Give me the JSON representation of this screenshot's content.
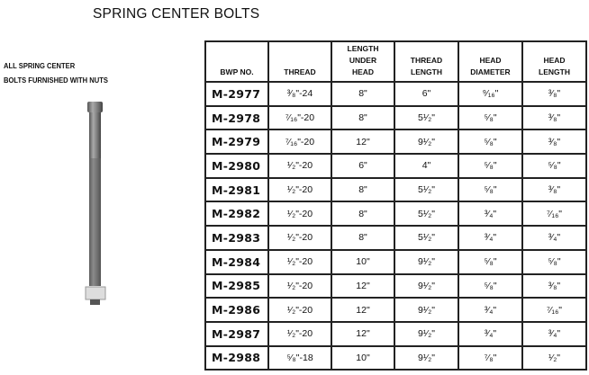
{
  "title": "SPRING CENTER BOLTS",
  "note": [
    "ALL SPRING CENTER",
    "BOLTS FURNISHED WITH NUTS"
  ],
  "image": {
    "icon": "spring-center-bolt-with-nut"
  },
  "table": {
    "headers": [
      "BWP NO.",
      "THREAD",
      "LENGTH\nUNDER\nHEAD",
      "THREAD\nLENGTH",
      "HEAD\nDIAMETER",
      "HEAD\nLENGTH"
    ],
    "rows": [
      [
        "M-2977",
        "³⁄₈\"-24",
        "8\"",
        "6\"",
        "⁹⁄₁₆\"",
        "³⁄₈\""
      ],
      [
        "M-2978",
        "⁷⁄₁₆\"-20",
        "8\"",
        "5¹⁄₂\"",
        "⁵⁄₈\"",
        "³⁄₈\""
      ],
      [
        "M-2979",
        "⁷⁄₁₆\"-20",
        "12\"",
        "9¹⁄₂\"",
        "⁵⁄₈\"",
        "³⁄₈\""
      ],
      [
        "M-2980",
        "¹⁄₂\"-20",
        "6\"",
        "4\"",
        "⁵⁄₈\"",
        "⁵⁄₈\""
      ],
      [
        "M-2981",
        "¹⁄₂\"-20",
        "8\"",
        "5¹⁄₂\"",
        "⁵⁄₈\"",
        "³⁄₈\""
      ],
      [
        "M-2982",
        "¹⁄₂\"-20",
        "8\"",
        "5¹⁄₂\"",
        "³⁄₄\"",
        "⁷⁄₁₆\""
      ],
      [
        "M-2983",
        "¹⁄₂\"-20",
        "8\"",
        "5¹⁄₂\"",
        "³⁄₄\"",
        "³⁄₄\""
      ],
      [
        "M-2984",
        "¹⁄₂\"-20",
        "10\"",
        "9¹⁄₂\"",
        "⁵⁄₈\"",
        "⁵⁄₈\""
      ],
      [
        "M-2985",
        "¹⁄₂\"-20",
        "12\"",
        "9¹⁄₂\"",
        "⁵⁄₈\"",
        "³⁄₈\""
      ],
      [
        "M-2986",
        "¹⁄₂\"-20",
        "12\"",
        "9¹⁄₂\"",
        "³⁄₄\"",
        "⁷⁄₁₆\""
      ],
      [
        "M-2987",
        "¹⁄₂\"-20",
        "12\"",
        "9¹⁄₂\"",
        "³⁄₄\"",
        "³⁄₄\""
      ],
      [
        "M-2988",
        "⁵⁄₈\"-18",
        "10\"",
        "9¹⁄₂\"",
        "⁷⁄₈\"",
        "¹⁄₂\""
      ]
    ]
  }
}
